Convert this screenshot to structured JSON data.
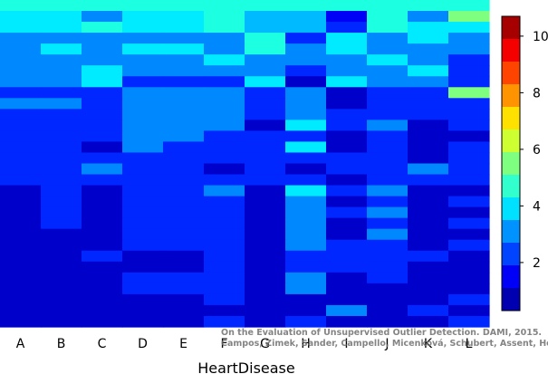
{
  "chart_data": {
    "type": "heatmap",
    "title": "",
    "xlabel": "HeartDisease",
    "ylabel": "",
    "categories": [
      "A",
      "B",
      "C",
      "D",
      "E",
      "F",
      "G",
      "H",
      "I",
      "J",
      "K",
      "L"
    ],
    "rows": 30,
    "colorbar": {
      "min": 0.3,
      "max": 10.7,
      "ticks": [
        2,
        4,
        6,
        8,
        10
      ]
    },
    "colormap": [
      "#00008f",
      "#0000ff",
      "#007fff",
      "#00ffff",
      "#7fff7f",
      "#ffff00",
      "#ff7f00",
      "#ff0000",
      "#7f0000"
    ],
    "grid": false,
    "values": [
      [
        4.5,
        4.5,
        4.5,
        4.5,
        4.5,
        4.5,
        4.5,
        4.5,
        4.5,
        4.5,
        4.5,
        4.5
      ],
      [
        4.0,
        4.0,
        3.0,
        4.0,
        4.0,
        4.5,
        3.5,
        3.5,
        1.5,
        4.5,
        3.0,
        5.5
      ],
      [
        4.0,
        4.0,
        4.5,
        4.0,
        4.0,
        4.5,
        3.5,
        3.5,
        2.0,
        4.5,
        4.0,
        4.0
      ],
      [
        3.0,
        3.0,
        3.0,
        3.0,
        3.0,
        3.0,
        4.5,
        2.0,
        4.0,
        3.0,
        4.0,
        3.0
      ],
      [
        3.0,
        4.0,
        3.0,
        4.0,
        4.0,
        3.0,
        4.5,
        3.0,
        4.0,
        3.0,
        3.0,
        3.0
      ],
      [
        3.0,
        3.0,
        3.0,
        3.0,
        3.0,
        4.0,
        3.0,
        3.0,
        3.0,
        4.0,
        3.0,
        2.0
      ],
      [
        3.0,
        3.0,
        4.0,
        3.0,
        3.0,
        3.0,
        3.0,
        2.0,
        3.0,
        3.0,
        4.0,
        2.0
      ],
      [
        3.0,
        3.0,
        4.0,
        2.0,
        2.0,
        2.0,
        4.0,
        1.0,
        4.0,
        3.0,
        3.0,
        2.0
      ],
      [
        2.0,
        2.0,
        2.0,
        3.0,
        3.0,
        3.0,
        2.0,
        3.0,
        1.0,
        2.0,
        2.0,
        5.5
      ],
      [
        3.0,
        3.0,
        2.0,
        3.0,
        3.0,
        3.0,
        2.0,
        3.0,
        1.0,
        2.0,
        2.0,
        2.0
      ],
      [
        2.0,
        2.0,
        2.0,
        3.0,
        3.0,
        3.0,
        2.0,
        3.0,
        2.0,
        2.0,
        2.0,
        2.0
      ],
      [
        2.0,
        2.0,
        2.0,
        3.0,
        3.0,
        3.0,
        1.0,
        4.0,
        2.0,
        3.0,
        1.0,
        2.0
      ],
      [
        2.0,
        2.0,
        2.0,
        3.0,
        3.0,
        2.0,
        2.0,
        2.0,
        1.0,
        2.0,
        1.0,
        1.0
      ],
      [
        2.0,
        2.0,
        1.0,
        3.0,
        2.0,
        2.0,
        2.0,
        4.0,
        1.0,
        2.0,
        1.0,
        2.0
      ],
      [
        2.0,
        2.0,
        2.0,
        2.0,
        2.0,
        2.0,
        2.0,
        2.0,
        2.0,
        2.0,
        1.0,
        2.0
      ],
      [
        2.0,
        2.0,
        3.0,
        2.0,
        2.0,
        1.0,
        2.0,
        1.0,
        2.0,
        2.0,
        3.0,
        2.0
      ],
      [
        2.0,
        2.0,
        2.0,
        2.0,
        2.0,
        2.0,
        2.0,
        2.0,
        1.0,
        2.0,
        2.0,
        2.0
      ],
      [
        1.0,
        2.0,
        1.0,
        2.0,
        2.0,
        3.0,
        1.0,
        4.0,
        2.0,
        3.0,
        1.0,
        1.0
      ],
      [
        1.0,
        2.0,
        1.0,
        2.0,
        2.0,
        2.0,
        1.0,
        3.0,
        1.0,
        2.0,
        1.0,
        2.0
      ],
      [
        1.0,
        2.0,
        1.0,
        2.0,
        2.0,
        2.0,
        1.0,
        3.0,
        2.0,
        3.0,
        1.0,
        1.0
      ],
      [
        1.0,
        2.0,
        1.0,
        2.0,
        2.0,
        2.0,
        1.0,
        3.0,
        1.0,
        2.0,
        1.0,
        2.0
      ],
      [
        1.0,
        1.0,
        1.0,
        2.0,
        2.0,
        2.0,
        1.0,
        3.0,
        1.0,
        3.0,
        1.0,
        1.0
      ],
      [
        1.0,
        1.0,
        1.0,
        2.0,
        2.0,
        2.0,
        1.0,
        3.0,
        2.0,
        2.0,
        1.0,
        2.0
      ],
      [
        1.0,
        1.0,
        2.0,
        1.0,
        1.0,
        2.0,
        1.0,
        2.0,
        2.0,
        2.0,
        2.0,
        1.0
      ],
      [
        1.0,
        1.0,
        1.0,
        1.0,
        1.0,
        2.0,
        1.0,
        2.0,
        2.0,
        2.0,
        1.0,
        1.0
      ],
      [
        1.0,
        1.0,
        1.0,
        2.0,
        2.0,
        2.0,
        1.0,
        3.0,
        1.0,
        2.0,
        1.0,
        1.0
      ],
      [
        1.0,
        1.0,
        1.0,
        2.0,
        2.0,
        2.0,
        1.0,
        3.0,
        1.0,
        1.0,
        1.0,
        1.0
      ],
      [
        1.0,
        1.0,
        1.0,
        1.0,
        1.0,
        2.0,
        1.0,
        1.0,
        1.0,
        1.0,
        1.0,
        2.0
      ],
      [
        1.0,
        1.0,
        1.0,
        1.0,
        1.0,
        1.0,
        1.0,
        1.0,
        3.0,
        1.0,
        2.0,
        1.0
      ],
      [
        1.0,
        1.0,
        1.0,
        1.0,
        1.0,
        2.0,
        1.0,
        2.0,
        1.0,
        1.0,
        1.0,
        2.0
      ]
    ]
  },
  "citation": {
    "line1": "On the Evaluation of Unsupervised Outlier Detection. DAMI, 2015.",
    "line2": "Campos, Zimek, Sander, Campello, Micenková, Schubert, Assent, Houle"
  }
}
